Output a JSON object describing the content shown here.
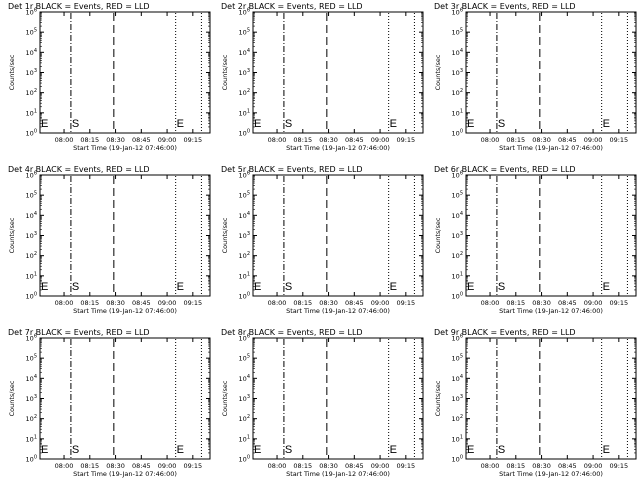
{
  "colors": {
    "background": "#ffffff",
    "foreground": "#000000"
  },
  "chart_data": [
    {
      "type": "line",
      "title": "Det 1r BLACK = Events, RED = LLD",
      "xlabel": "Start Time (19-Jan-12 07:46:00)",
      "ylabel": "Counts/sec",
      "x_ticks": [
        "08:00",
        "08:15",
        "08:30",
        "08:45",
        "09:00",
        "09:15"
      ],
      "y_ticks": [
        "10^0",
        "10^1",
        "10^2",
        "10^3",
        "10^4",
        "10^5",
        "10^6"
      ],
      "yscale": "log",
      "ylim": [
        1,
        1000000
      ],
      "xlim": [
        "07:46",
        "09:25"
      ],
      "series": [],
      "annotations": [
        {
          "text": "E",
          "x": "07:46",
          "style": "dotted"
        },
        {
          "text": "S",
          "x": "08:04",
          "style": "dash-dot"
        },
        {
          "text": "",
          "x": "08:29",
          "style": "dashed"
        },
        {
          "text": "E",
          "x": "09:05",
          "style": "dotted"
        },
        {
          "text": "",
          "x": "09:20",
          "style": "dotted"
        }
      ]
    },
    {
      "type": "line",
      "title": "Det 2r BLACK = Events, RED = LLD",
      "xlabel": "Start Time (19-Jan-12 07:46:00)",
      "ylabel": "Counts/sec",
      "x_ticks": [
        "08:00",
        "08:15",
        "08:30",
        "08:45",
        "09:00",
        "09:15"
      ],
      "y_ticks": [
        "10^0",
        "10^1",
        "10^2",
        "10^3",
        "10^4",
        "10^5",
        "10^6"
      ],
      "yscale": "log",
      "ylim": [
        1,
        1000000
      ],
      "xlim": [
        "07:46",
        "09:25"
      ],
      "series": [],
      "annotations": [
        {
          "text": "E",
          "x": "07:46",
          "style": "dotted"
        },
        {
          "text": "S",
          "x": "08:04",
          "style": "dash-dot"
        },
        {
          "text": "",
          "x": "08:29",
          "style": "dashed"
        },
        {
          "text": "E",
          "x": "09:05",
          "style": "dotted"
        },
        {
          "text": "",
          "x": "09:20",
          "style": "dotted"
        }
      ]
    },
    {
      "type": "line",
      "title": "Det 3r BLACK = Events, RED = LLD",
      "xlabel": "Start Time (19-Jan-12 07:46:00)",
      "ylabel": "Counts/sec",
      "x_ticks": [
        "08:00",
        "08:15",
        "08:30",
        "08:45",
        "09:00",
        "09:15"
      ],
      "y_ticks": [
        "10^0",
        "10^1",
        "10^2",
        "10^3",
        "10^4",
        "10^5",
        "10^6"
      ],
      "yscale": "log",
      "ylim": [
        1,
        1000000
      ],
      "xlim": [
        "07:46",
        "09:25"
      ],
      "series": [],
      "annotations": [
        {
          "text": "E",
          "x": "07:46",
          "style": "dotted"
        },
        {
          "text": "S",
          "x": "08:04",
          "style": "dash-dot"
        },
        {
          "text": "",
          "x": "08:29",
          "style": "dashed"
        },
        {
          "text": "E",
          "x": "09:05",
          "style": "dotted"
        },
        {
          "text": "",
          "x": "09:20",
          "style": "dotted"
        }
      ]
    },
    {
      "type": "line",
      "title": "Det 4r BLACK = Events, RED = LLD",
      "xlabel": "Start Time (19-Jan-12 07:46:00)",
      "ylabel": "Counts/sec",
      "x_ticks": [
        "08:00",
        "08:15",
        "08:30",
        "08:45",
        "09:00",
        "09:15"
      ],
      "y_ticks": [
        "10^0",
        "10^1",
        "10^2",
        "10^3",
        "10^4",
        "10^5",
        "10^6"
      ],
      "yscale": "log",
      "ylim": [
        1,
        1000000
      ],
      "xlim": [
        "07:46",
        "09:25"
      ],
      "series": [],
      "annotations": [
        {
          "text": "E",
          "x": "07:46",
          "style": "dotted"
        },
        {
          "text": "S",
          "x": "08:04",
          "style": "dash-dot"
        },
        {
          "text": "",
          "x": "08:29",
          "style": "dashed"
        },
        {
          "text": "E",
          "x": "09:05",
          "style": "dotted"
        },
        {
          "text": "",
          "x": "09:20",
          "style": "dotted"
        }
      ]
    },
    {
      "type": "line",
      "title": "Det 5r BLACK = Events, RED = LLD",
      "xlabel": "Start Time (19-Jan-12 07:46:00)",
      "ylabel": "Counts/sec",
      "x_ticks": [
        "08:00",
        "08:15",
        "08:30",
        "08:45",
        "09:00",
        "09:15"
      ],
      "y_ticks": [
        "10^0",
        "10^1",
        "10^2",
        "10^3",
        "10^4",
        "10^5",
        "10^6"
      ],
      "yscale": "log",
      "ylim": [
        1,
        1000000
      ],
      "xlim": [
        "07:46",
        "09:25"
      ],
      "series": [],
      "annotations": [
        {
          "text": "E",
          "x": "07:46",
          "style": "dotted"
        },
        {
          "text": "S",
          "x": "08:04",
          "style": "dash-dot"
        },
        {
          "text": "",
          "x": "08:29",
          "style": "dashed"
        },
        {
          "text": "E",
          "x": "09:05",
          "style": "dotted"
        },
        {
          "text": "",
          "x": "09:20",
          "style": "dotted"
        }
      ]
    },
    {
      "type": "line",
      "title": "Det 6r BLACK = Events, RED = LLD",
      "xlabel": "Start Time (19-Jan-12 07:46:00)",
      "ylabel": "Counts/sec",
      "x_ticks": [
        "08:00",
        "08:15",
        "08:30",
        "08:45",
        "09:00",
        "09:15"
      ],
      "y_ticks": [
        "10^0",
        "10^1",
        "10^2",
        "10^3",
        "10^4",
        "10^5",
        "10^6"
      ],
      "yscale": "log",
      "ylim": [
        1,
        1000000
      ],
      "xlim": [
        "07:46",
        "09:25"
      ],
      "series": [],
      "annotations": [
        {
          "text": "E",
          "x": "07:46",
          "style": "dotted"
        },
        {
          "text": "S",
          "x": "08:04",
          "style": "dash-dot"
        },
        {
          "text": "",
          "x": "08:29",
          "style": "dashed"
        },
        {
          "text": "E",
          "x": "09:05",
          "style": "dotted"
        },
        {
          "text": "",
          "x": "09:20",
          "style": "dotted"
        }
      ]
    },
    {
      "type": "line",
      "title": "Det 7r BLACK = Events, RED = LLD",
      "xlabel": "Start Time (19-Jan-12 07:46:00)",
      "ylabel": "Counts/sec",
      "x_ticks": [
        "08:00",
        "08:15",
        "08:30",
        "08:45",
        "09:00",
        "09:15"
      ],
      "y_ticks": [
        "10^0",
        "10^1",
        "10^2",
        "10^3",
        "10^4",
        "10^5",
        "10^6"
      ],
      "yscale": "log",
      "ylim": [
        1,
        1000000
      ],
      "xlim": [
        "07:46",
        "09:25"
      ],
      "series": [],
      "annotations": [
        {
          "text": "E",
          "x": "07:46",
          "style": "dotted"
        },
        {
          "text": "S",
          "x": "08:04",
          "style": "dash-dot"
        },
        {
          "text": "",
          "x": "08:29",
          "style": "dashed"
        },
        {
          "text": "E",
          "x": "09:05",
          "style": "dotted"
        },
        {
          "text": "",
          "x": "09:20",
          "style": "dotted"
        }
      ]
    },
    {
      "type": "line",
      "title": "Det 8r BLACK = Events, RED = LLD",
      "xlabel": "Start Time (19-Jan-12 07:46:00)",
      "ylabel": "Counts/sec",
      "x_ticks": [
        "08:00",
        "08:15",
        "08:30",
        "08:45",
        "09:00",
        "09:15"
      ],
      "y_ticks": [
        "10^0",
        "10^1",
        "10^2",
        "10^3",
        "10^4",
        "10^5",
        "10^6"
      ],
      "yscale": "log",
      "ylim": [
        1,
        1000000
      ],
      "xlim": [
        "07:46",
        "09:25"
      ],
      "series": [],
      "annotations": [
        {
          "text": "E",
          "x": "07:46",
          "style": "dotted"
        },
        {
          "text": "S",
          "x": "08:04",
          "style": "dash-dot"
        },
        {
          "text": "",
          "x": "08:29",
          "style": "dashed"
        },
        {
          "text": "E",
          "x": "09:05",
          "style": "dotted"
        },
        {
          "text": "",
          "x": "09:20",
          "style": "dotted"
        }
      ]
    },
    {
      "type": "line",
      "title": "Det 9r BLACK = Events, RED = LLD",
      "xlabel": "Start Time (19-Jan-12 07:46:00)",
      "ylabel": "Counts/sec",
      "x_ticks": [
        "08:00",
        "08:15",
        "08:30",
        "08:45",
        "09:00",
        "09:15"
      ],
      "y_ticks": [
        "10^0",
        "10^1",
        "10^2",
        "10^3",
        "10^4",
        "10^5",
        "10^6"
      ],
      "yscale": "log",
      "ylim": [
        1,
        1000000
      ],
      "xlim": [
        "07:46",
        "09:25"
      ],
      "series": [],
      "annotations": [
        {
          "text": "E",
          "x": "07:46",
          "style": "dotted"
        },
        {
          "text": "S",
          "x": "08:04",
          "style": "dash-dot"
        },
        {
          "text": "",
          "x": "08:29",
          "style": "dashed"
        },
        {
          "text": "E",
          "x": "09:05",
          "style": "dotted"
        },
        {
          "text": "",
          "x": "09:20",
          "style": "dotted"
        }
      ]
    }
  ]
}
